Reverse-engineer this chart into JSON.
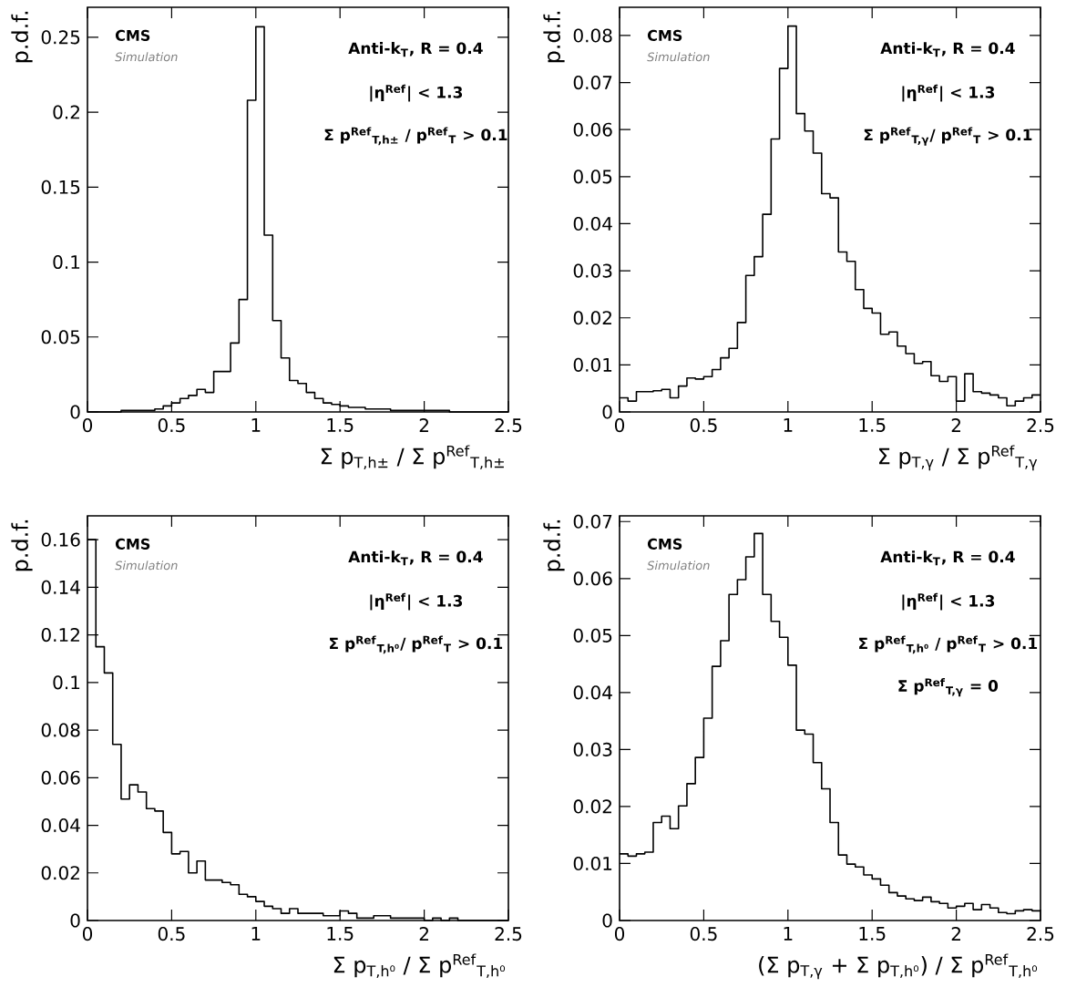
{
  "chart_data": [
    {
      "type": "histogram",
      "color": "#000000",
      "ylabel": "p.d.f.",
      "xlabel": "Σ p$_{T,h±}$ / Σ p$^{Ref}$$_{T,h±}$",
      "annotations": [
        "CMS",
        "Simulation",
        "Anti-k$_{T}$, R = 0.4",
        "|η$^{Ref}$| < 1.3",
        "Σ p$^{Ref}$$_{T,h±}$ / p$^{Ref}$$_{T}$ > 0.1"
      ],
      "bins": [
        0,
        0.05,
        0.1,
        0.15,
        0.2,
        0.25,
        0.3,
        0.35,
        0.4,
        0.45,
        0.5,
        0.55,
        0.6,
        0.65,
        0.7,
        0.75,
        0.8,
        0.85,
        0.9,
        0.95,
        1,
        1.05,
        1.1,
        1.15,
        1.2,
        1.25,
        1.3,
        1.35,
        1.4,
        1.45,
        1.5,
        1.55,
        1.6,
        1.65,
        1.7,
        1.75,
        1.8,
        1.85,
        1.9,
        1.95,
        2,
        2.05,
        2.1,
        2.15,
        2.2,
        2.25,
        2.3,
        2.35,
        2.4,
        2.45,
        2.5
      ],
      "values": [
        0,
        0,
        0,
        0,
        0.001,
        0.001,
        0.001,
        0.001,
        0.002,
        0.004,
        0.006,
        0.009,
        0.011,
        0.015,
        0.013,
        0.027,
        0.027,
        0.046,
        0.075,
        0.208,
        0.257,
        0.118,
        0.061,
        0.036,
        0.021,
        0.019,
        0.013,
        0.009,
        0.006,
        0.005,
        0.004,
        0.003,
        0.003,
        0.002,
        0.002,
        0.002,
        0.001,
        0.001,
        0.001,
        0.001,
        0.001,
        0.001,
        0.001,
        0,
        0,
        0,
        0,
        0,
        0,
        0
      ],
      "xlim": [
        0,
        2.5
      ],
      "ylim": [
        0,
        0.27
      ],
      "xticks": [
        0,
        0.5,
        1,
        1.5,
        2,
        2.5
      ],
      "yticks": [
        0,
        0.05,
        0.1,
        0.15,
        0.2,
        0.25
      ]
    },
    {
      "type": "histogram",
      "color": "#000000",
      "ylabel": "p.d.f.",
      "xlabel": "Σ p$_{T,γ}$ / Σ p$^{Ref}$$_{T,γ}$",
      "annotations": [
        "CMS",
        "Simulation",
        "Anti-k$_{T}$, R = 0.4",
        "|η$^{Ref}$| < 1.3",
        "Σ p$^{Ref}$$_{T,γ}$/ p$^{Ref}$$_{T}$ > 0.1"
      ],
      "bins": [
        0,
        0.05,
        0.1,
        0.15,
        0.2,
        0.25,
        0.3,
        0.35,
        0.4,
        0.45,
        0.5,
        0.55,
        0.6,
        0.65,
        0.7,
        0.75,
        0.8,
        0.85,
        0.9,
        0.95,
        1,
        1.05,
        1.1,
        1.15,
        1.2,
        1.25,
        1.3,
        1.35,
        1.4,
        1.45,
        1.5,
        1.55,
        1.6,
        1.65,
        1.7,
        1.75,
        1.8,
        1.85,
        1.9,
        1.95,
        2,
        2.05,
        2.1,
        2.15,
        2.2,
        2.25,
        2.3,
        2.35,
        2.4,
        2.45,
        2.5
      ],
      "values": [
        0.003,
        0.0023,
        0.0043,
        0.0043,
        0.0045,
        0.0048,
        0.003,
        0.0055,
        0.0072,
        0.007,
        0.0075,
        0.009,
        0.0115,
        0.0135,
        0.019,
        0.029,
        0.033,
        0.042,
        0.058,
        0.073,
        0.082,
        0.0634,
        0.0597,
        0.055,
        0.0464,
        0.0455,
        0.034,
        0.032,
        0.026,
        0.022,
        0.021,
        0.0165,
        0.017,
        0.014,
        0.0124,
        0.0103,
        0.0107,
        0.0077,
        0.0065,
        0.0075,
        0.0023,
        0.0081,
        0.0043,
        0.004,
        0.0036,
        0.003,
        0.0013,
        0.0023,
        0.003,
        0.0036
      ],
      "xlim": [
        0,
        2.5
      ],
      "ylim": [
        0,
        0.086
      ],
      "xticks": [
        0,
        0.5,
        1,
        1.5,
        2,
        2.5
      ],
      "yticks": [
        0,
        0.01,
        0.02,
        0.03,
        0.04,
        0.05,
        0.06,
        0.07,
        0.08
      ]
    },
    {
      "type": "histogram",
      "color": "#000000",
      "ylabel": "p.d.f.",
      "xlabel": "Σ p$_{T,h⁰}$ / Σ p$^{Ref}$$_{T,h⁰}$",
      "annotations": [
        "CMS",
        "Simulation",
        "Anti-k$_{T}$, R = 0.4",
        "|η$^{Ref}$| < 1.3",
        "Σ p$^{Ref}$$_{T,h⁰}$/ p$^{Ref}$$_{T}$ > 0.1"
      ],
      "bins": [
        0,
        0.05,
        0.1,
        0.15,
        0.2,
        0.25,
        0.3,
        0.35,
        0.4,
        0.45,
        0.5,
        0.55,
        0.6,
        0.65,
        0.7,
        0.75,
        0.8,
        0.85,
        0.9,
        0.95,
        1,
        1.05,
        1.1,
        1.15,
        1.2,
        1.25,
        1.3,
        1.35,
        1.4,
        1.45,
        1.5,
        1.55,
        1.6,
        1.65,
        1.7,
        1.75,
        1.8,
        1.85,
        1.9,
        1.95,
        2,
        2.05,
        2.1,
        2.15,
        2.2,
        2.25,
        2.3,
        2.35,
        2.4,
        2.45,
        2.5
      ],
      "values": [
        0.16,
        0.115,
        0.104,
        0.074,
        0.051,
        0.057,
        0.054,
        0.047,
        0.046,
        0.037,
        0.028,
        0.029,
        0.02,
        0.025,
        0.017,
        0.017,
        0.016,
        0.015,
        0.011,
        0.01,
        0.008,
        0.006,
        0.005,
        0.003,
        0.005,
        0.003,
        0.003,
        0.003,
        0.002,
        0.002,
        0.004,
        0.003,
        0.001,
        0.001,
        0.002,
        0.002,
        0.001,
        0.001,
        0.001,
        0.001,
        0,
        0.001,
        0,
        0.001,
        0,
        0,
        0,
        0,
        0,
        0
      ],
      "xlim": [
        0,
        2.5
      ],
      "ylim": [
        0,
        0.17
      ],
      "xticks": [
        0,
        0.5,
        1,
        1.5,
        2,
        2.5
      ],
      "yticks": [
        0,
        0.02,
        0.04,
        0.06,
        0.08,
        0.1,
        0.12,
        0.14,
        0.16
      ]
    },
    {
      "type": "histogram",
      "color": "#000000",
      "ylabel": "p.d.f.",
      "xlabel": "(Σ p$_{T,γ}$ + Σ p$_{T,h⁰}$) / Σ p$^{Ref}$$_{T,h⁰}$",
      "annotations": [
        "CMS",
        "Simulation",
        "Anti-k$_{T}$, R = 0.4",
        "|η$^{Ref}$| < 1.3",
        "Σ p$^{Ref}$$_{T,h⁰}$ / p$^{Ref}$$_{T}$ > 0.1",
        "Σ p$^{Ref}$$_{T,γ}$ = 0"
      ],
      "bins": [
        0,
        0.05,
        0.1,
        0.15,
        0.2,
        0.25,
        0.3,
        0.35,
        0.4,
        0.45,
        0.5,
        0.55,
        0.6,
        0.65,
        0.7,
        0.75,
        0.8,
        0.85,
        0.9,
        0.95,
        1,
        1.05,
        1.1,
        1.15,
        1.2,
        1.25,
        1.3,
        1.35,
        1.4,
        1.45,
        1.5,
        1.55,
        1.6,
        1.65,
        1.7,
        1.75,
        1.8,
        1.85,
        1.9,
        1.95,
        2,
        2.05,
        2.1,
        2.15,
        2.2,
        2.25,
        2.3,
        2.35,
        2.4,
        2.45,
        2.5
      ],
      "values": [
        0.0117,
        0.0113,
        0.0117,
        0.012,
        0.0172,
        0.0183,
        0.0161,
        0.0201,
        0.024,
        0.0286,
        0.0355,
        0.0446,
        0.0491,
        0.0572,
        0.0598,
        0.0638,
        0.0679,
        0.0572,
        0.0525,
        0.0497,
        0.0448,
        0.0334,
        0.0327,
        0.0277,
        0.0231,
        0.0172,
        0.0115,
        0.0099,
        0.0094,
        0.008,
        0.0073,
        0.0062,
        0.0049,
        0.0043,
        0.0038,
        0.0035,
        0.0041,
        0.0033,
        0.003,
        0.0022,
        0.0025,
        0.003,
        0.0019,
        0.0028,
        0.0022,
        0.0014,
        0.0012,
        0.0017,
        0.0019,
        0.0017
      ],
      "xlim": [
        0,
        2.5
      ],
      "ylim": [
        0,
        0.071
      ],
      "xticks": [
        0,
        0.5,
        1,
        1.5,
        2,
        2.5
      ],
      "yticks": [
        0,
        0.01,
        0.02,
        0.03,
        0.04,
        0.05,
        0.06,
        0.07
      ]
    }
  ]
}
